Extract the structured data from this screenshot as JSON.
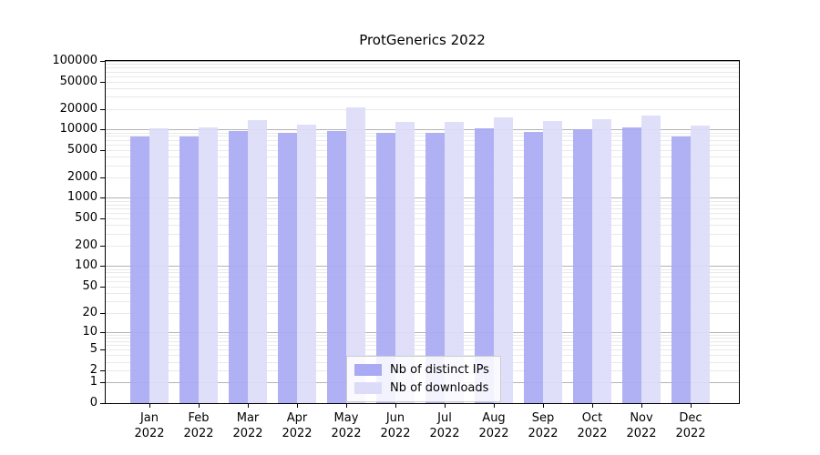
{
  "title": "ProtGenerics 2022",
  "chart_data": {
    "type": "bar",
    "title": "ProtGenerics 2022",
    "x_tick_year": "2022",
    "categories": [
      "Jan",
      "Feb",
      "Mar",
      "Apr",
      "May",
      "Jun",
      "Jul",
      "Aug",
      "Sep",
      "Oct",
      "Nov",
      "Dec"
    ],
    "series": [
      {
        "name": "Nb of distinct IPs",
        "color": "#a9a9f4",
        "values": [
          7800,
          7800,
          9400,
          9000,
          9500,
          9000,
          9000,
          10500,
          9300,
          10000,
          10800,
          7900
        ]
      },
      {
        "name": "Nb of downloads",
        "color": "#dcdcf9",
        "values": [
          10500,
          10800,
          13700,
          11900,
          21200,
          13000,
          12700,
          15100,
          13200,
          14200,
          16100,
          11500
        ]
      }
    ],
    "y_scale": "log1p",
    "ylim": [
      0,
      100000
    ],
    "y_ticks": [
      {
        "value": 0,
        "label": "0"
      },
      {
        "value": 1,
        "label": "1"
      },
      {
        "value": 2,
        "label": "2"
      },
      {
        "value": 5,
        "label": "5"
      },
      {
        "value": 10,
        "label": "10"
      },
      {
        "value": 20,
        "label": "20"
      },
      {
        "value": 50,
        "label": "50"
      },
      {
        "value": 100,
        "label": "100"
      },
      {
        "value": 200,
        "label": "200"
      },
      {
        "value": 500,
        "label": "500"
      },
      {
        "value": 1000,
        "label": "1000"
      },
      {
        "value": 2000,
        "label": "2000"
      },
      {
        "value": 5000,
        "label": "5000"
      },
      {
        "value": 10000,
        "label": "10000"
      },
      {
        "value": 20000,
        "label": "20000"
      },
      {
        "value": 50000,
        "label": "50000"
      },
      {
        "value": 100000,
        "label": "100000"
      }
    ],
    "grid": true,
    "legend_position": "lower center",
    "colors": {
      "major_gridline": "#b3b3b3",
      "minor_gridline": "#e9e9e9",
      "axis": "#000000",
      "background": "#ffffff"
    }
  }
}
